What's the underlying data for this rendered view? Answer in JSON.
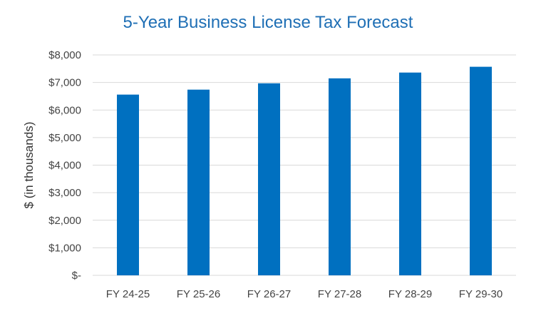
{
  "chart_data": {
    "type": "bar",
    "title": "5-Year Business License Tax Forecast",
    "xlabel": "",
    "ylabel": "$ (in thousands)",
    "categories": [
      "FY 24-25",
      "FY 25-26",
      "FY 26-27",
      "FY 27-28",
      "FY 28-29",
      "FY 29-30"
    ],
    "values": [
      6560,
      6740,
      6970,
      7150,
      7360,
      7570
    ],
    "ylim": [
      0,
      8000
    ],
    "yticks": [
      0,
      1000,
      2000,
      3000,
      4000,
      5000,
      6000,
      7000,
      8000
    ],
    "ytick_labels": [
      "$-",
      "$1,000",
      "$2,000",
      "$3,000",
      "$4,000",
      "$5,000",
      "$6,000",
      "$7,000",
      "$8,000"
    ],
    "grid": true,
    "legend": "none",
    "bar_color": "#0070c0",
    "title_color": "#1f6fb5",
    "grid_color": "#d9d9d9"
  }
}
